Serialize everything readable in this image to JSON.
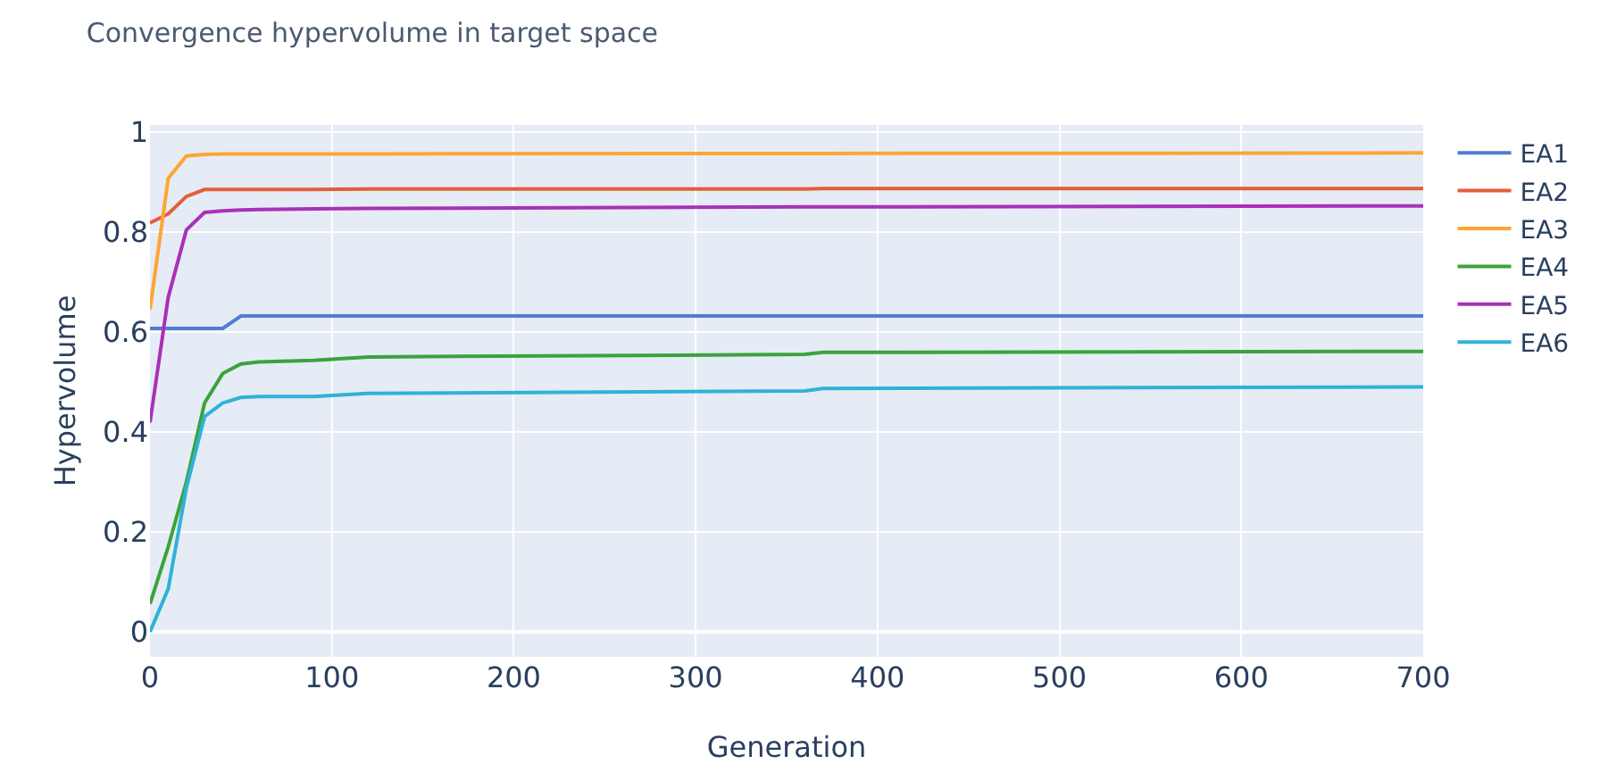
{
  "chart_data": {
    "type": "line",
    "title": "Convergence hypervolume in target space",
    "xlabel": "Generation",
    "ylabel": "Hypervolume",
    "x": [
      0,
      10,
      20,
      30,
      40,
      50,
      60,
      90,
      120,
      360,
      370,
      700
    ],
    "series": [
      {
        "name": "EA1",
        "color": "#4f7cd6",
        "values": [
          0.607,
          0.607,
          0.607,
          0.607,
          0.607,
          0.632,
          0.632,
          0.632,
          0.632,
          0.632,
          0.632,
          0.632
        ]
      },
      {
        "name": "EA2",
        "color": "#e45d3a",
        "values": [
          0.818,
          0.836,
          0.871,
          0.885,
          0.885,
          0.885,
          0.885,
          0.885,
          0.886,
          0.886,
          0.887,
          0.887
        ]
      },
      {
        "name": "EA3",
        "color": "#fea533",
        "values": [
          0.645,
          0.907,
          0.952,
          0.955,
          0.956,
          0.956,
          0.956,
          0.956,
          0.956,
          0.957,
          0.957,
          0.958
        ]
      },
      {
        "name": "EA4",
        "color": "#3ba33b",
        "values": [
          0.056,
          0.17,
          0.3,
          0.458,
          0.517,
          0.536,
          0.54,
          0.543,
          0.55,
          0.555,
          0.559,
          0.561
        ]
      },
      {
        "name": "EA5",
        "color": "#aa30b7",
        "values": [
          0.419,
          0.669,
          0.804,
          0.839,
          0.842,
          0.844,
          0.845,
          0.846,
          0.847,
          0.85,
          0.85,
          0.852
        ]
      },
      {
        "name": "EA6",
        "color": "#2fb2d8",
        "values": [
          0.0,
          0.086,
          0.288,
          0.431,
          0.458,
          0.469,
          0.471,
          0.471,
          0.477,
          0.482,
          0.487,
          0.49
        ]
      }
    ],
    "xlim": [
      0,
      700
    ],
    "xticks": [
      0,
      100,
      200,
      300,
      400,
      500,
      600,
      700
    ],
    "ylim": [
      -0.05,
      1.014
    ],
    "yticks": [
      0,
      0.2,
      0.4,
      0.6,
      0.8,
      1
    ],
    "grid": true,
    "legend": "top right",
    "marker": "none",
    "line_style": "solid"
  }
}
